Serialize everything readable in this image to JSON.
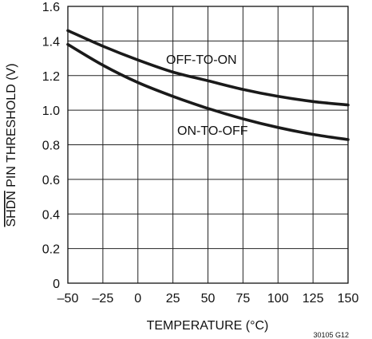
{
  "chart_data": {
    "type": "line",
    "ylabel_overline": "SHDN",
    "ylabel_rest": " PIN THRESHOLD (V)",
    "xlabel": "TEMPERATURE (°C)",
    "xlim": [
      -50,
      150
    ],
    "ylim": [
      0,
      1.6
    ],
    "x_ticks": [
      -50,
      -25,
      0,
      25,
      50,
      75,
      100,
      125,
      150
    ],
    "x_tick_labels": [
      "–50",
      "–25",
      "0",
      "25",
      "50",
      "75",
      "100",
      "125",
      "150"
    ],
    "y_ticks": [
      0,
      0.2,
      0.4,
      0.6,
      0.8,
      1.0,
      1.2,
      1.4,
      1.6
    ],
    "y_tick_labels": [
      "0",
      "0.2",
      "0.4",
      "0.6",
      "0.8",
      "1.0",
      "1.2",
      "1.4",
      "1.6"
    ],
    "grid": true,
    "series": [
      {
        "name": "OFF-TO-ON",
        "x": [
          -50,
          -25,
          0,
          25,
          50,
          75,
          100,
          125,
          150
        ],
        "y": [
          1.46,
          1.37,
          1.29,
          1.22,
          1.17,
          1.12,
          1.08,
          1.05,
          1.03
        ]
      },
      {
        "name": "ON-TO-OFF",
        "x": [
          -50,
          -25,
          0,
          25,
          50,
          75,
          100,
          125,
          150
        ],
        "y": [
          1.38,
          1.26,
          1.16,
          1.08,
          1.01,
          0.95,
          0.9,
          0.86,
          0.83
        ]
      }
    ],
    "figure_id": "30105 G12"
  }
}
